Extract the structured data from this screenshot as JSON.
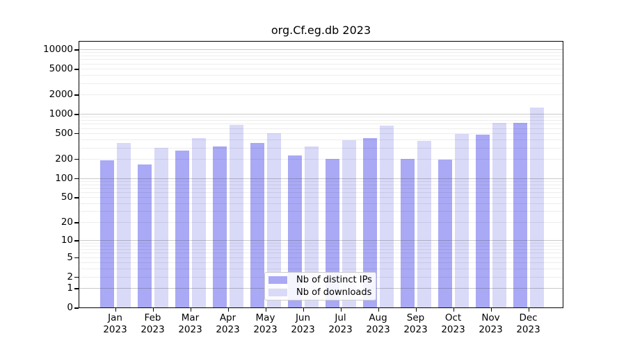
{
  "title": "org.Cf.eg.db 2023",
  "legend": {
    "items": [
      {
        "label": "Nb of distinct IPs",
        "color": "#a9a9f5"
      },
      {
        "label": "Nb of downloads",
        "color": "#d9d9f8"
      }
    ]
  },
  "chart_data": {
    "type": "bar",
    "title": "org.Cf.eg.db 2023",
    "xlabel": "",
    "ylabel": "",
    "y_scale": "log1p",
    "ylim": [
      0,
      13000
    ],
    "grid": "major+minor horizontal",
    "legend_position": "bottom-center inside plot",
    "categories": [
      {
        "month": "Jan",
        "year": "2023"
      },
      {
        "month": "Feb",
        "year": "2023"
      },
      {
        "month": "Mar",
        "year": "2023"
      },
      {
        "month": "Apr",
        "year": "2023"
      },
      {
        "month": "May",
        "year": "2023"
      },
      {
        "month": "Jun",
        "year": "2023"
      },
      {
        "month": "Jul",
        "year": "2023"
      },
      {
        "month": "Aug",
        "year": "2023"
      },
      {
        "month": "Sep",
        "year": "2023"
      },
      {
        "month": "Oct",
        "year": "2023"
      },
      {
        "month": "Nov",
        "year": "2023"
      },
      {
        "month": "Dec",
        "year": "2023"
      }
    ],
    "series": [
      {
        "name": "Nb of distinct IPs",
        "color": "#a9a9f5",
        "values": [
          190,
          165,
          270,
          310,
          355,
          225,
          200,
          415,
          200,
          195,
          470,
          730
        ]
      },
      {
        "name": "Nb of downloads",
        "color": "#d9d9f8",
        "values": [
          350,
          300,
          425,
          680,
          505,
          315,
          385,
          650,
          380,
          490,
          730,
          1250
        ]
      }
    ],
    "yticks": [
      10000,
      5000,
      2000,
      1000,
      500,
      200,
      100,
      50,
      20,
      10,
      5,
      2,
      1,
      0
    ],
    "ytick_majors": [
      1,
      10,
      100,
      1000,
      10000
    ]
  }
}
